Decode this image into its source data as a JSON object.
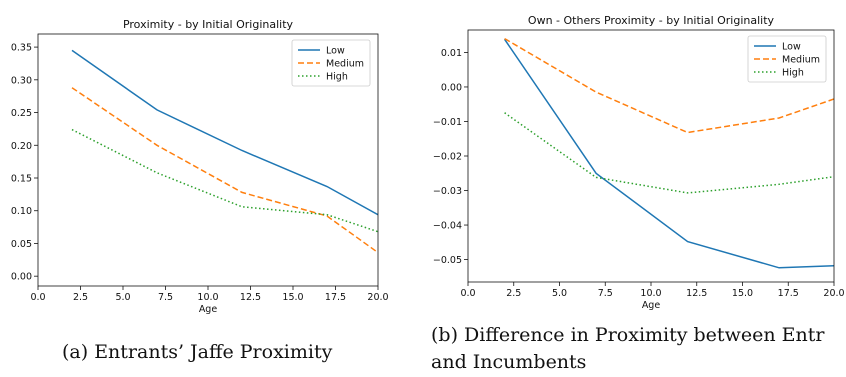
{
  "chart_data": [
    {
      "type": "line",
      "title": "Proximity -  by Initial Originality",
      "xlabel": "Age",
      "ylabel": "",
      "xlim": [
        0.0,
        20.0
      ],
      "ylim": [
        -0.015,
        0.37
      ],
      "xticks": [
        "0.0",
        "2.5",
        "5.0",
        "7.5",
        "10.0",
        "12.5",
        "15.0",
        "17.5",
        "20.0"
      ],
      "yticks": [
        "0.00",
        "0.05",
        "0.10",
        "0.15",
        "0.20",
        "0.25",
        "0.30",
        "0.35"
      ],
      "legend": "top-right",
      "series": [
        {
          "name": "Low",
          "color": "#1f77b4",
          "style": "solid",
          "x": [
            2,
            7,
            12,
            17,
            20
          ],
          "values": [
            0.345,
            0.254,
            0.192,
            0.137,
            0.094
          ]
        },
        {
          "name": "Medium",
          "color": "#ff7f0e",
          "style": "dashed",
          "x": [
            2,
            7,
            12,
            17,
            20
          ],
          "values": [
            0.288,
            0.2,
            0.128,
            0.092,
            0.036
          ]
        },
        {
          "name": "High",
          "color": "#2ca02c",
          "style": "dotted",
          "x": [
            2,
            7,
            12,
            17,
            20
          ],
          "values": [
            0.224,
            0.158,
            0.106,
            0.094,
            0.068
          ]
        }
      ],
      "caption": "(a) Entrants’ Jaffe Proximity"
    },
    {
      "type": "line",
      "title": "Own - Others Proximity -  by Initial Originality",
      "xlabel": "Age",
      "ylabel": "",
      "xlim": [
        0.0,
        20.0
      ],
      "ylim": [
        -0.0565,
        0.0165
      ],
      "xticks": [
        "0.0",
        "2.5",
        "5.0",
        "7.5",
        "10.0",
        "12.5",
        "15.0",
        "17.5",
        "20.0"
      ],
      "yticks": [
        "0.01",
        "0.00",
        "−0.01",
        "−0.02",
        "−0.03",
        "−0.04",
        "−0.05"
      ],
      "legend": "top-right",
      "series": [
        {
          "name": "Low",
          "color": "#1f77b4",
          "style": "solid",
          "x": [
            2,
            7,
            12,
            17,
            20
          ],
          "values": [
            0.0138,
            -0.025,
            -0.0448,
            -0.0524,
            -0.0518
          ]
        },
        {
          "name": "Medium",
          "color": "#ff7f0e",
          "style": "dashed",
          "x": [
            2,
            7,
            12,
            17,
            20
          ],
          "values": [
            0.014,
            -0.0015,
            -0.0132,
            -0.009,
            -0.0035
          ]
        },
        {
          "name": "High",
          "color": "#2ca02c",
          "style": "dotted",
          "x": [
            2,
            7,
            12,
            17,
            20
          ],
          "values": [
            -0.0075,
            -0.0262,
            -0.0307,
            -0.0282,
            -0.026
          ]
        }
      ],
      "caption_line1": "(b) Difference in Proximity between Entr",
      "caption_line2": "and Incumbents"
    }
  ]
}
